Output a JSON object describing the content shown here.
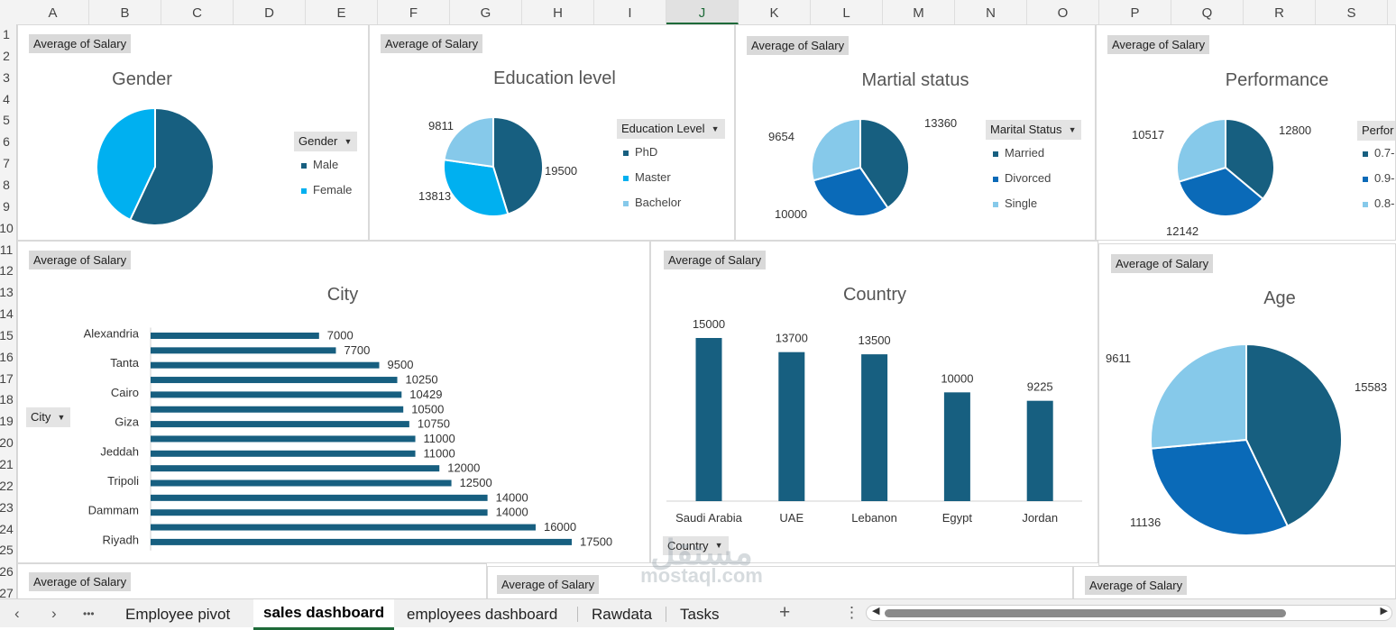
{
  "columns": [
    "A",
    "B",
    "C",
    "D",
    "E",
    "F",
    "G",
    "H",
    "I",
    "J",
    "K",
    "L",
    "M",
    "N",
    "O",
    "P",
    "Q",
    "R",
    "S"
  ],
  "selected_column": "J",
  "rows": [
    "1",
    "2",
    "3",
    "4",
    "5",
    "6",
    "7",
    "8",
    "9",
    "10",
    "11",
    "12",
    "13",
    "14",
    "15",
    "16",
    "17",
    "18",
    "19",
    "20",
    "21",
    "22",
    "23",
    "24",
    "25",
    "26",
    "27"
  ],
  "palette": {
    "dark": "#175f80",
    "mid": "#0a6ab8",
    "bright": "#00b0f0",
    "light": "#86c9ea"
  },
  "charts": [
    {
      "id": "gender",
      "type": "pie",
      "field_button": "Average of Salary",
      "title": "Gender",
      "legend_title": "Gender",
      "legend": [
        "Male",
        "Female"
      ],
      "slices": [
        {
          "category": "Male",
          "value": 57,
          "color": "#175f80"
        },
        {
          "category": "Female",
          "value": 43,
          "color": "#00b0f0"
        }
      ],
      "data_labels": []
    },
    {
      "id": "education",
      "type": "pie",
      "field_button": "Average of Salary",
      "title": "Education level",
      "legend_title": "Education  Level",
      "legend": [
        "PhD",
        "Master",
        "Bachelor"
      ],
      "slices": [
        {
          "category": "PhD",
          "value": 19500,
          "color": "#175f80"
        },
        {
          "category": "Master",
          "value": 13813,
          "color": "#00b0f0"
        },
        {
          "category": "Bachelor",
          "value": 9811,
          "color": "#86c9ea"
        }
      ],
      "data_labels": [
        "19500",
        "13813",
        "9811"
      ]
    },
    {
      "id": "marital",
      "type": "pie",
      "field_button": "Average of Salary",
      "title": "Martial status",
      "legend_title": "Marital Status",
      "legend": [
        "Married",
        "Divorced",
        "Single"
      ],
      "slices": [
        {
          "category": "Married",
          "value": 13360,
          "color": "#175f80"
        },
        {
          "category": "Divorced",
          "value": 10000,
          "color": "#0a6ab8"
        },
        {
          "category": "Single",
          "value": 9654,
          "color": "#86c9ea"
        }
      ],
      "data_labels": [
        "13360",
        "10000",
        "9654"
      ]
    },
    {
      "id": "performance",
      "type": "pie",
      "field_button": "Average of Salary",
      "title": "Performance",
      "legend_title": "Perfor",
      "legend": [
        "0.7-",
        "0.9-",
        "0.8-"
      ],
      "slices": [
        {
          "category": "0.7-",
          "value": 12800,
          "color": "#175f80"
        },
        {
          "category": "0.9-",
          "value": 12142,
          "color": "#0a6ab8"
        },
        {
          "category": "0.8-",
          "value": 10517,
          "color": "#86c9ea"
        }
      ],
      "data_labels": [
        "12800",
        "12142",
        "10517"
      ]
    },
    {
      "id": "city",
      "type": "bar",
      "field_button": "Average of Salary",
      "title": "City",
      "axis_button": "City",
      "category_labels": [
        "Alexandria",
        "Tanta",
        "Cairo",
        "Giza",
        "Jeddah",
        "Tripoli",
        "Dammam",
        "Riyadh"
      ],
      "values": [
        7000,
        7700,
        9500,
        10250,
        10429,
        10500,
        10750,
        11000,
        11000,
        12000,
        12500,
        14000,
        14000,
        16000,
        17500
      ],
      "color": "#175f80"
    },
    {
      "id": "country",
      "type": "bar",
      "field_button": "Average of Salary",
      "title": "Country",
      "axis_button": "Country",
      "categories": [
        "Saudi Arabia",
        "UAE",
        "Lebanon",
        "Egypt",
        "Jordan"
      ],
      "values": [
        15000,
        13700,
        13500,
        10000,
        9225
      ],
      "color": "#175f80"
    },
    {
      "id": "age",
      "type": "pie",
      "field_button": "Average of Salary",
      "title": "Age",
      "slices": [
        {
          "value": 15583,
          "color": "#175f80"
        },
        {
          "value": 11136,
          "color": "#0a6ab8"
        },
        {
          "value": 9611,
          "color": "#86c9ea"
        }
      ],
      "data_labels": [
        "15583",
        "11136",
        "9611"
      ]
    }
  ],
  "bottom_field_buttons": [
    "Average of Salary",
    "Average of Salary",
    "Average of Salary"
  ],
  "tabs": {
    "items": [
      "Employee pivot",
      "sales dashboard",
      "employees dashboard",
      "Rawdata",
      "Tasks"
    ],
    "active": "sales dashboard",
    "more": "•••",
    "add": "+",
    "menu": "⋮"
  },
  "watermark": {
    "text_ar": "مستقل",
    "text_en": "mostaql.com"
  }
}
